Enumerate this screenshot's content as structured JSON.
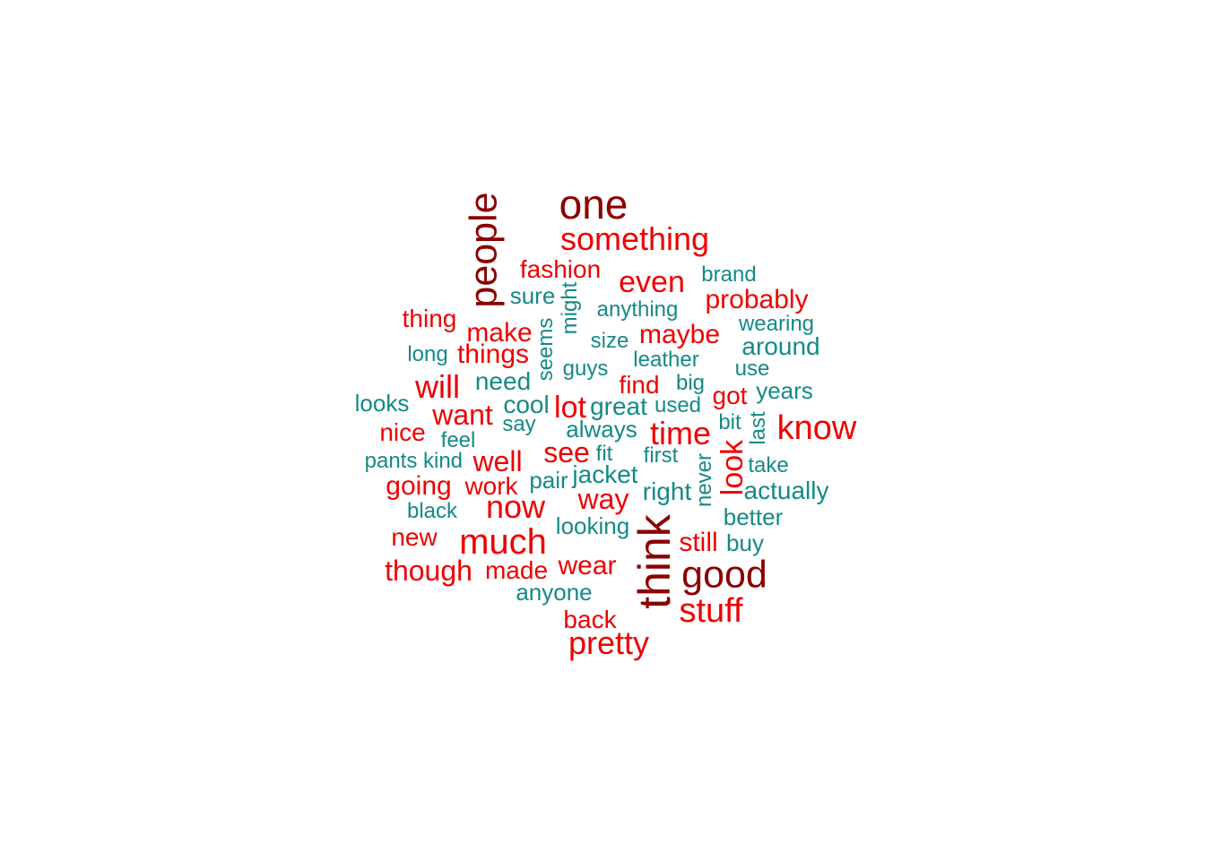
{
  "colors": {
    "dark": "#8b0000",
    "red": "#ee0000",
    "teal": "#138a87"
  },
  "words": [
    {
      "text": "one",
      "color": "dark"
    },
    {
      "text": "people",
      "color": "dark"
    },
    {
      "text": "think",
      "color": "dark"
    },
    {
      "text": "good",
      "color": "dark"
    },
    {
      "text": "something",
      "color": "red"
    },
    {
      "text": "fashion",
      "color": "red"
    },
    {
      "text": "even",
      "color": "red"
    },
    {
      "text": "probably",
      "color": "red"
    },
    {
      "text": "thing",
      "color": "red"
    },
    {
      "text": "make",
      "color": "red"
    },
    {
      "text": "maybe",
      "color": "red"
    },
    {
      "text": "things",
      "color": "red"
    },
    {
      "text": "will",
      "color": "red"
    },
    {
      "text": "find",
      "color": "red"
    },
    {
      "text": "got",
      "color": "red"
    },
    {
      "text": "lot",
      "color": "red"
    },
    {
      "text": "want",
      "color": "red"
    },
    {
      "text": "know",
      "color": "red"
    },
    {
      "text": "nice",
      "color": "red"
    },
    {
      "text": "time",
      "color": "red"
    },
    {
      "text": "see",
      "color": "red"
    },
    {
      "text": "well",
      "color": "red"
    },
    {
      "text": "look",
      "color": "red"
    },
    {
      "text": "going",
      "color": "red"
    },
    {
      "text": "work",
      "color": "red"
    },
    {
      "text": "way",
      "color": "red"
    },
    {
      "text": "now",
      "color": "red"
    },
    {
      "text": "new",
      "color": "red"
    },
    {
      "text": "much",
      "color": "red"
    },
    {
      "text": "still",
      "color": "red"
    },
    {
      "text": "though",
      "color": "red"
    },
    {
      "text": "made",
      "color": "red"
    },
    {
      "text": "wear",
      "color": "red"
    },
    {
      "text": "stuff",
      "color": "red"
    },
    {
      "text": "back",
      "color": "red"
    },
    {
      "text": "pretty",
      "color": "red"
    },
    {
      "text": "brand",
      "color": "teal"
    },
    {
      "text": "sure",
      "color": "teal"
    },
    {
      "text": "might",
      "color": "teal"
    },
    {
      "text": "anything",
      "color": "teal"
    },
    {
      "text": "wearing",
      "color": "teal"
    },
    {
      "text": "seems",
      "color": "teal"
    },
    {
      "text": "size",
      "color": "teal"
    },
    {
      "text": "around",
      "color": "teal"
    },
    {
      "text": "long",
      "color": "teal"
    },
    {
      "text": "leather",
      "color": "teal"
    },
    {
      "text": "guys",
      "color": "teal"
    },
    {
      "text": "use",
      "color": "teal"
    },
    {
      "text": "need",
      "color": "teal"
    },
    {
      "text": "big",
      "color": "teal"
    },
    {
      "text": "years",
      "color": "teal"
    },
    {
      "text": "looks",
      "color": "teal"
    },
    {
      "text": "cool",
      "color": "teal"
    },
    {
      "text": "great",
      "color": "teal"
    },
    {
      "text": "used",
      "color": "teal"
    },
    {
      "text": "say",
      "color": "teal"
    },
    {
      "text": "always",
      "color": "teal"
    },
    {
      "text": "bit",
      "color": "teal"
    },
    {
      "text": "last",
      "color": "teal"
    },
    {
      "text": "feel",
      "color": "teal"
    },
    {
      "text": "fit",
      "color": "teal"
    },
    {
      "text": "first",
      "color": "teal"
    },
    {
      "text": "pants",
      "color": "teal"
    },
    {
      "text": "kind",
      "color": "teal"
    },
    {
      "text": "pair",
      "color": "teal"
    },
    {
      "text": "jacket",
      "color": "teal"
    },
    {
      "text": "take",
      "color": "teal"
    },
    {
      "text": "never",
      "color": "teal"
    },
    {
      "text": "right",
      "color": "teal"
    },
    {
      "text": "actually",
      "color": "teal"
    },
    {
      "text": "black",
      "color": "teal"
    },
    {
      "text": "better",
      "color": "teal"
    },
    {
      "text": "looking",
      "color": "teal"
    },
    {
      "text": "buy",
      "color": "teal"
    },
    {
      "text": "anyone",
      "color": "teal"
    }
  ]
}
